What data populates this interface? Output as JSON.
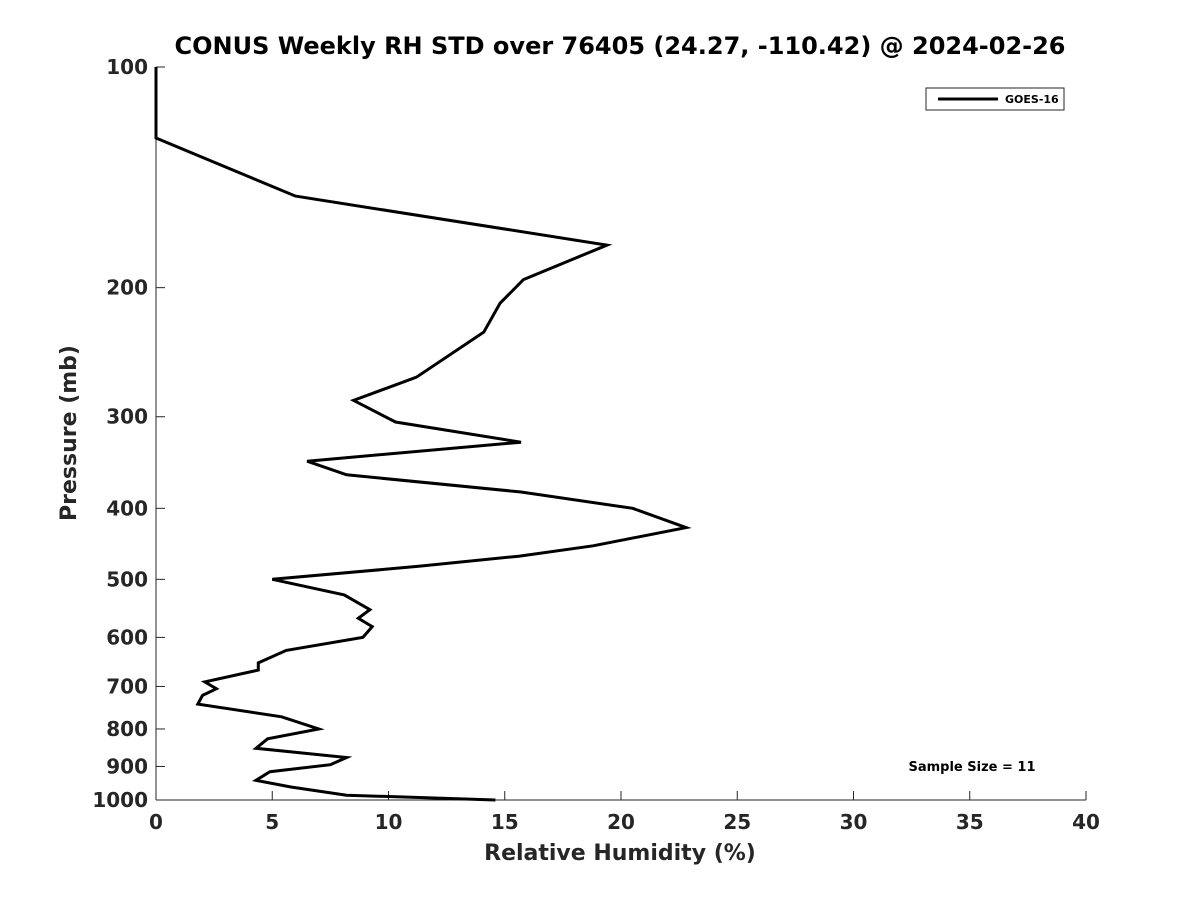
{
  "chart_data": {
    "type": "line",
    "title": "CONUS Weekly RH STD over 76405 (24.27, -110.42) @ 2024-02-26",
    "xlabel": "Relative Humidity (%)",
    "ylabel": "Pressure (mb)",
    "xlim": [
      0,
      40
    ],
    "ylim": [
      1000,
      100
    ],
    "yscale": "log",
    "y_reversed": true,
    "xticks": [
      0,
      5,
      10,
      15,
      20,
      25,
      30,
      35,
      40
    ],
    "yticks": [
      100,
      200,
      300,
      400,
      500,
      600,
      700,
      800,
      900,
      1000
    ],
    "grid": false,
    "legend_position": "top-right",
    "annotation": "Sample Size = 11",
    "line_color": "#000000",
    "series": [
      {
        "name": "GOES-16",
        "x": [
          0,
          0,
          6.0,
          19.4,
          15.8,
          14.8,
          14.1,
          11.2,
          8.5,
          10.3,
          15.7,
          6.5,
          8.2,
          15.7,
          20.5,
          22.8,
          18.8,
          15.6,
          11.3,
          5.0,
          8.1,
          9.2,
          8.7,
          9.3,
          8.9,
          5.6,
          4.4,
          4.4,
          2.1,
          2.6,
          2.0,
          1.8,
          5.4,
          7.0,
          4.8,
          4.3,
          8.2,
          7.5,
          4.9,
          4.3,
          5.8,
          8.2,
          14.6
        ],
        "y": [
          100,
          125,
          150,
          175,
          195,
          210,
          230,
          265,
          285,
          305,
          325,
          345,
          360,
          380,
          400,
          425,
          450,
          465,
          480,
          500,
          525,
          550,
          565,
          580,
          600,
          625,
          650,
          665,
          690,
          705,
          720,
          740,
          770,
          800,
          825,
          850,
          875,
          895,
          915,
          940,
          960,
          985,
          1000
        ]
      }
    ]
  }
}
